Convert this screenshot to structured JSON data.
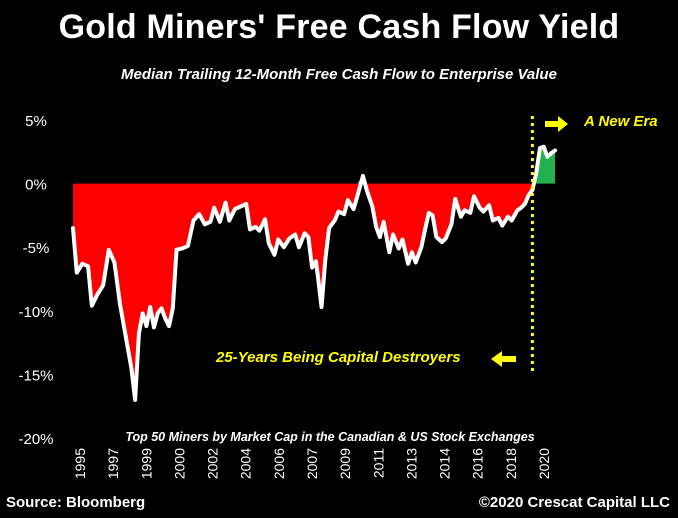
{
  "title": "Gold Miners' Free Cash Flow Yield",
  "subtitle": "Median Trailing 12-Month Free Cash Flow to Enterprise Value",
  "footer": {
    "source": "Source: Bloomberg",
    "copyright": "©2020 Crescat Capital LLC"
  },
  "colors": {
    "negative": "#ff0000",
    "positive": "#22b14c",
    "line": "#ffffff",
    "annotation": "#ffff00",
    "background": "#000000"
  },
  "chart_data": {
    "type": "area",
    "ylim": [
      -20,
      5
    ],
    "y_ticks": [
      5,
      0,
      -5,
      -10,
      -15,
      -20
    ],
    "y_tick_labels": [
      "5%",
      "0%",
      "-5%",
      "-10%",
      "-15%",
      "-20%"
    ],
    "x_tick_labels": [
      "1995",
      "1997",
      "1999",
      "2000",
      "2002",
      "2004",
      "2006",
      "2007",
      "2009",
      "2011",
      "2013",
      "2014",
      "2016",
      "2018",
      "2020"
    ],
    "annotations": {
      "new_era": "A New Era",
      "destroyers": "25-Years Being Capital Destroyers",
      "note": "Top 50 Miners by Market Cap in the Canadian & US Stock Exchanges"
    },
    "divider_x": 2019.4,
    "series": [
      {
        "values": [
          [
            1995.0,
            -3.5
          ],
          [
            1995.2,
            -7.0
          ],
          [
            1995.5,
            -6.3
          ],
          [
            1995.8,
            -6.5
          ],
          [
            1996.0,
            -9.6
          ],
          [
            1996.3,
            -8.7
          ],
          [
            1996.6,
            -8.0
          ],
          [
            1996.9,
            -5.2
          ],
          [
            1997.2,
            -6.2
          ],
          [
            1997.5,
            -9.5
          ],
          [
            1997.8,
            -12.0
          ],
          [
            1998.1,
            -14.5
          ],
          [
            1998.3,
            -17.0
          ],
          [
            1998.5,
            -11.8
          ],
          [
            1998.7,
            -10.2
          ],
          [
            1998.9,
            -11.2
          ],
          [
            1999.1,
            -9.7
          ],
          [
            1999.3,
            -11.3
          ],
          [
            1999.5,
            -10.2
          ],
          [
            1999.7,
            -9.8
          ],
          [
            1999.9,
            -10.6
          ],
          [
            2000.1,
            -11.2
          ],
          [
            2000.3,
            -9.8
          ],
          [
            2000.5,
            -5.2
          ],
          [
            2000.8,
            -5.1
          ],
          [
            2001.1,
            -4.9
          ],
          [
            2001.4,
            -2.9
          ],
          [
            2001.7,
            -2.4
          ],
          [
            2002.0,
            -3.2
          ],
          [
            2002.3,
            -3.0
          ],
          [
            2002.5,
            -1.9
          ],
          [
            2002.8,
            -3.0
          ],
          [
            2003.1,
            -1.5
          ],
          [
            2003.3,
            -2.9
          ],
          [
            2003.6,
            -2.0
          ],
          [
            2003.9,
            -1.8
          ],
          [
            2004.2,
            -1.6
          ],
          [
            2004.4,
            -3.6
          ],
          [
            2004.7,
            -3.4
          ],
          [
            2004.9,
            -3.7
          ],
          [
            2005.2,
            -2.8
          ],
          [
            2005.4,
            -4.7
          ],
          [
            2005.7,
            -5.6
          ],
          [
            2005.9,
            -4.4
          ],
          [
            2006.2,
            -5.0
          ],
          [
            2006.5,
            -4.3
          ],
          [
            2006.8,
            -4.0
          ],
          [
            2007.0,
            -5.0
          ],
          [
            2007.3,
            -3.9
          ],
          [
            2007.5,
            -4.2
          ],
          [
            2007.7,
            -6.6
          ],
          [
            2007.9,
            -6.1
          ],
          [
            2008.0,
            -7.2
          ],
          [
            2008.2,
            -9.7
          ],
          [
            2008.4,
            -6.0
          ],
          [
            2008.6,
            -3.5
          ],
          [
            2008.9,
            -2.9
          ],
          [
            2009.1,
            -2.2
          ],
          [
            2009.4,
            -2.4
          ],
          [
            2009.6,
            -1.3
          ],
          [
            2009.9,
            -2.0
          ],
          [
            2010.1,
            -1.0
          ],
          [
            2010.4,
            0.6
          ],
          [
            2010.6,
            -0.5
          ],
          [
            2010.9,
            -1.8
          ],
          [
            2011.1,
            -3.4
          ],
          [
            2011.3,
            -4.2
          ],
          [
            2011.5,
            -3.0
          ],
          [
            2011.8,
            -5.4
          ],
          [
            2012.0,
            -4.0
          ],
          [
            2012.3,
            -5.1
          ],
          [
            2012.5,
            -4.4
          ],
          [
            2012.8,
            -6.3
          ],
          [
            2013.0,
            -5.4
          ],
          [
            2013.2,
            -6.2
          ],
          [
            2013.5,
            -5.0
          ],
          [
            2013.7,
            -3.6
          ],
          [
            2013.9,
            -2.3
          ],
          [
            2014.1,
            -2.5
          ],
          [
            2014.3,
            -4.2
          ],
          [
            2014.6,
            -4.6
          ],
          [
            2014.8,
            -4.3
          ],
          [
            2015.1,
            -3.2
          ],
          [
            2015.3,
            -1.2
          ],
          [
            2015.6,
            -2.6
          ],
          [
            2015.8,
            -2.1
          ],
          [
            2016.1,
            -2.3
          ],
          [
            2016.3,
            -1.0
          ],
          [
            2016.6,
            -1.9
          ],
          [
            2016.8,
            -2.2
          ],
          [
            2017.1,
            -1.7
          ],
          [
            2017.3,
            -2.9
          ],
          [
            2017.6,
            -2.7
          ],
          [
            2017.8,
            -3.3
          ],
          [
            2018.1,
            -2.6
          ],
          [
            2018.3,
            -2.9
          ],
          [
            2018.6,
            -2.1
          ],
          [
            2018.8,
            -1.9
          ],
          [
            2019.0,
            -1.6
          ],
          [
            2019.2,
            -0.9
          ],
          [
            2019.4,
            -0.5
          ],
          [
            2019.6,
            0.8
          ],
          [
            2019.8,
            2.8
          ],
          [
            2020.0,
            2.9
          ],
          [
            2020.2,
            2.1
          ],
          [
            2020.4,
            2.4
          ],
          [
            2020.6,
            2.6
          ]
        ]
      }
    ]
  }
}
